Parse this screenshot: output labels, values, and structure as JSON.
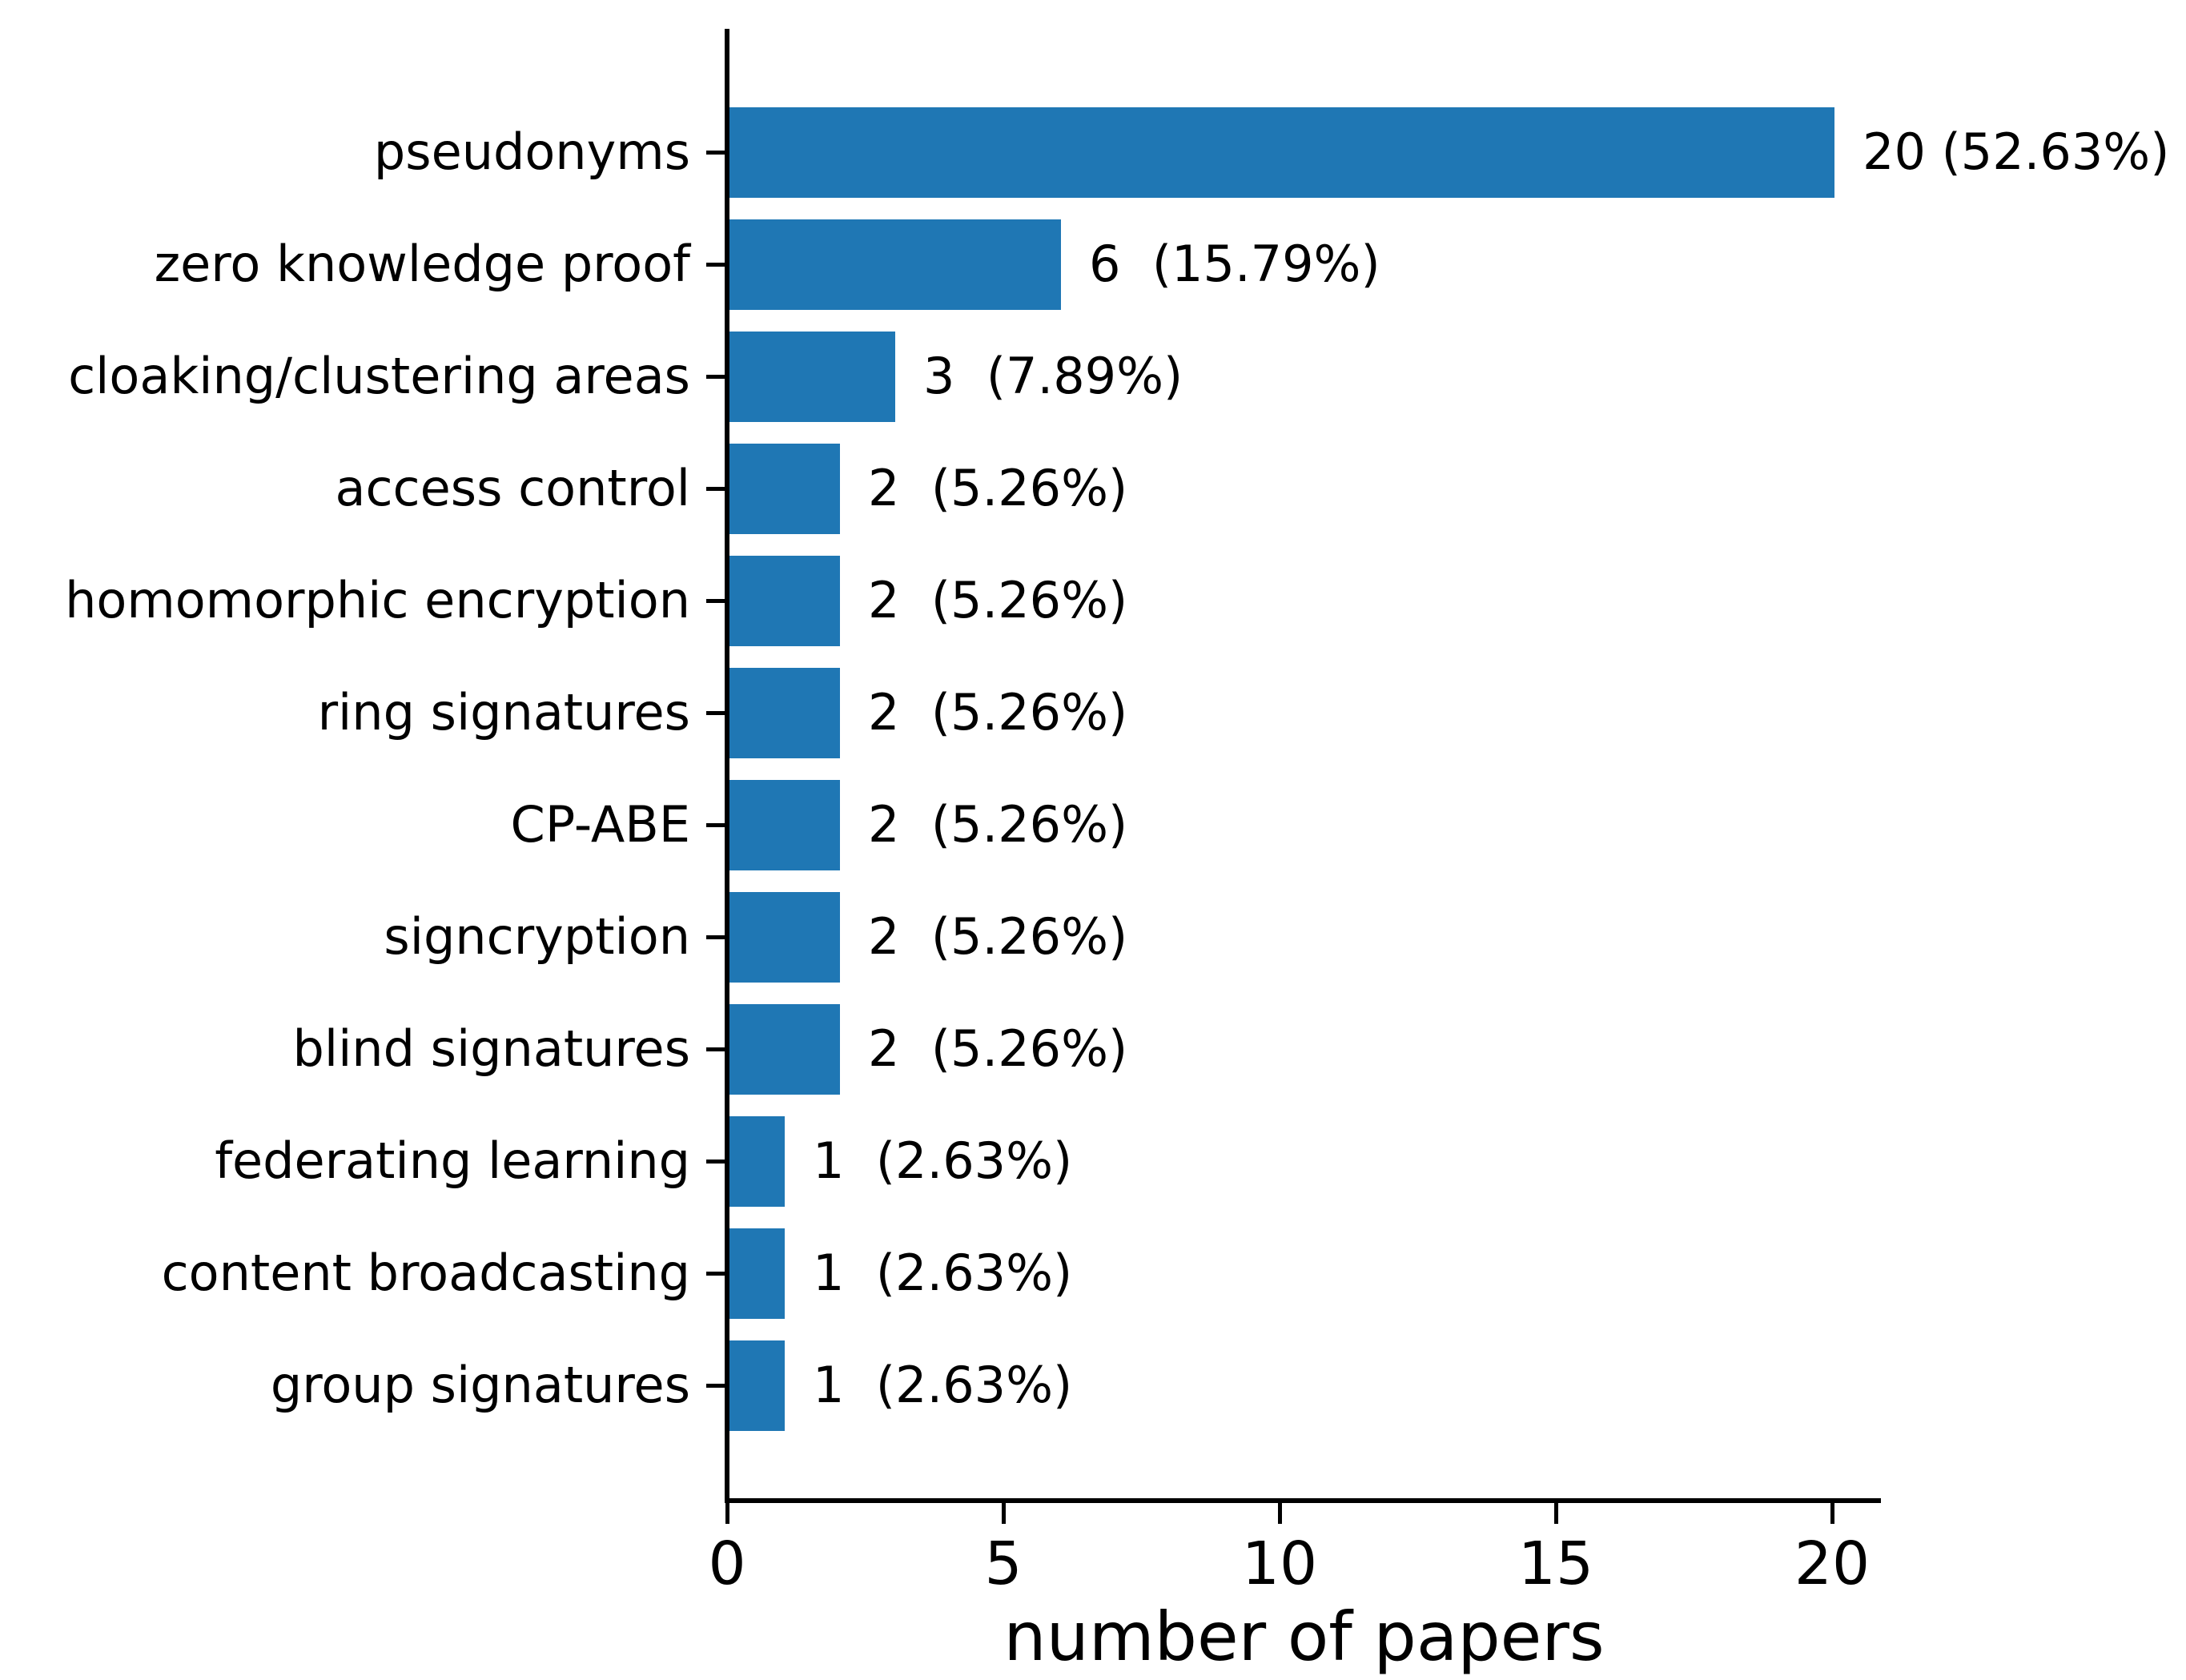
{
  "chart_data": {
    "type": "bar",
    "orientation": "horizontal",
    "title": "",
    "xlabel": "number of papers",
    "ylabel": "",
    "categories": [
      "pseudonyms",
      "zero knowledge proof",
      "cloaking/clustering areas",
      "access control",
      "homomorphic encryption",
      "ring signatures",
      "CP-ABE",
      "signcryption",
      "blind signatures",
      "federating learning",
      "content broadcasting",
      "group signatures"
    ],
    "values": [
      20,
      6,
      3,
      2,
      2,
      2,
      2,
      2,
      2,
      1,
      1,
      1
    ],
    "percentages": [
      52.63,
      15.79,
      7.89,
      5.26,
      5.26,
      5.26,
      5.26,
      5.26,
      5.26,
      2.63,
      2.63,
      2.63
    ],
    "value_labels": [
      "20 (52.63%)",
      "6  (15.79%)",
      "3  (7.89%)",
      "2  (5.26%)",
      "2  (5.26%)",
      "2  (5.26%)",
      "2  (5.26%)",
      "2  (5.26%)",
      "2  (5.26%)",
      "1  (2.63%)",
      "1  (2.63%)",
      "1  (2.63%)"
    ],
    "xticks": [
      0,
      5,
      10,
      15,
      20
    ],
    "xlim": [
      0,
      20.88
    ],
    "grid": false,
    "legend": null,
    "bar_color": "#1f77b4",
    "axis_color": "#000000",
    "text_color": "#000000",
    "background_color": "#ffffff"
  }
}
